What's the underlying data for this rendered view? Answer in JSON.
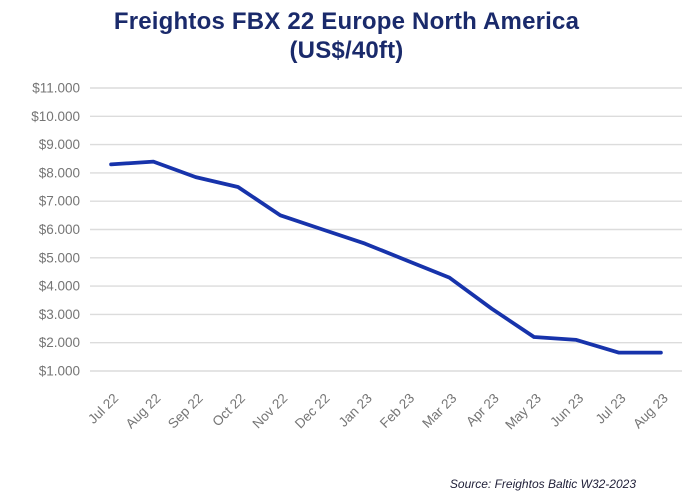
{
  "title": {
    "line1": "Freightos FBX 22 Europe North America",
    "line2": "(US$/40ft)"
  },
  "source": {
    "text": "Source: Freightos Baltic W32-2023"
  },
  "colors": {
    "line": "#1733ab",
    "title": "#1a2a6b",
    "axis_label": "#757575",
    "gridline": "#dcdcdc",
    "source_text": "#21213a",
    "background": "#ffffff"
  },
  "chart_data": {
    "type": "line",
    "title": "Freightos FBX 22 Europe North America (US$/40ft)",
    "series_name": "FBX 22 Europe North America (US$/40ft)",
    "categories": [
      "Jul 22",
      "Aug 22",
      "Sep 22",
      "Oct 22",
      "Nov 22",
      "Dec 22",
      "Jan 23",
      "Feb 23",
      "Mar 23",
      "Apr 23",
      "May 23",
      "Jun 23",
      "Jul 23",
      "Aug 23"
    ],
    "values": [
      8300,
      8400,
      7850,
      7500,
      6500,
      6000,
      5500,
      4900,
      4300,
      3200,
      2200,
      2100,
      1650,
      1650
    ],
    "xlabel": "",
    "ylabel": "",
    "ylim": [
      1000,
      11000
    ],
    "grid": true,
    "legend": false,
    "yticks": [
      {
        "value": 1000,
        "label": "$1.000"
      },
      {
        "value": 2000,
        "label": "$2.000"
      },
      {
        "value": 3000,
        "label": "$3.000"
      },
      {
        "value": 4000,
        "label": "$4.000"
      },
      {
        "value": 5000,
        "label": "$5.000"
      },
      {
        "value": 6000,
        "label": "$6.000"
      },
      {
        "value": 7000,
        "label": "$7.000"
      },
      {
        "value": 8000,
        "label": "$8.000"
      },
      {
        "value": 9000,
        "label": "$9.000"
      },
      {
        "value": 10000,
        "label": "$10.000"
      },
      {
        "value": 11000,
        "label": "$11.000"
      }
    ]
  }
}
